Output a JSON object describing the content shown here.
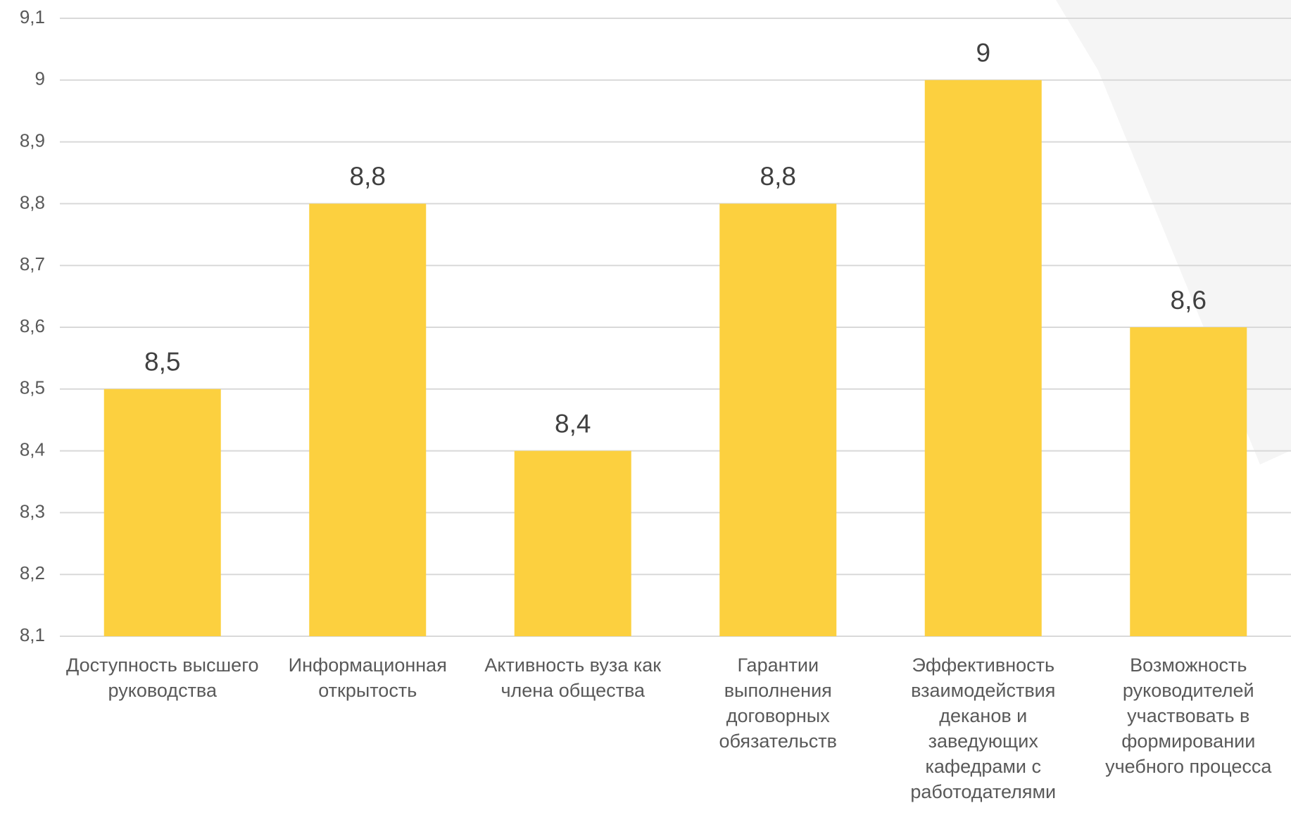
{
  "chart_data": {
    "type": "bar",
    "categories": [
      "Доступность высшего руководства",
      "Информационная открытость",
      "Активность вуза как члена общества",
      "Гарантии выполнения договорных обязательств",
      "Эффективность взаимодействия деканов и заведующих кафедрами с работодателями",
      "Возможность руководителей участвовать в формировании учебного процесса"
    ],
    "values": [
      8.5,
      8.8,
      8.4,
      8.8,
      9,
      8.6
    ],
    "value_labels": [
      "8,5",
      "8,8",
      "8,4",
      "8,8",
      "9",
      "8,6"
    ],
    "color": "#fcd03f",
    "ylim": [
      8.1,
      9.1
    ],
    "yticks": [
      {
        "value": 8.1,
        "label": "8,1"
      },
      {
        "value": 8.2,
        "label": "8,2"
      },
      {
        "value": 8.3,
        "label": "8,3"
      },
      {
        "value": 8.4,
        "label": "8,4"
      },
      {
        "value": 8.5,
        "label": "8,5"
      },
      {
        "value": 8.6,
        "label": "8,6"
      },
      {
        "value": 8.7,
        "label": "8,7"
      },
      {
        "value": 8.8,
        "label": "8,8"
      },
      {
        "value": 8.9,
        "label": "8,9"
      },
      9,
      {
        "value": 9.1,
        "label": "9,1"
      }
    ],
    "grid": true
  }
}
